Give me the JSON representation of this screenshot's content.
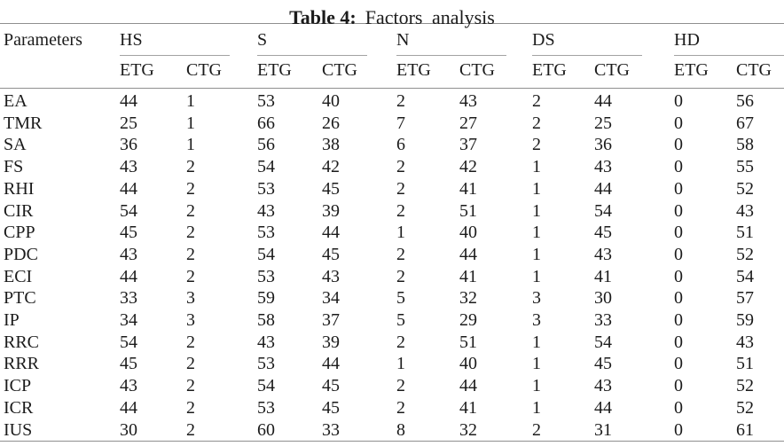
{
  "caption": {
    "label": "Table 4:",
    "text": "Factors analysis"
  },
  "table": {
    "param_header": "Parameters",
    "groups": [
      "HS",
      "S",
      "N",
      "DS",
      "HD"
    ],
    "subheaders": [
      "ETG",
      "CTG"
    ],
    "rows": [
      {
        "param": "EA",
        "values": [
          44,
          1,
          53,
          40,
          2,
          43,
          2,
          44,
          0,
          56
        ]
      },
      {
        "param": "TMR",
        "values": [
          25,
          1,
          66,
          26,
          7,
          27,
          2,
          25,
          0,
          67
        ]
      },
      {
        "param": "SA",
        "values": [
          36,
          1,
          56,
          38,
          6,
          37,
          2,
          36,
          0,
          58
        ]
      },
      {
        "param": "FS",
        "values": [
          43,
          2,
          54,
          42,
          2,
          42,
          1,
          43,
          0,
          55
        ]
      },
      {
        "param": "RHI",
        "values": [
          44,
          2,
          53,
          45,
          2,
          41,
          1,
          44,
          0,
          52
        ]
      },
      {
        "param": "CIR",
        "values": [
          54,
          2,
          43,
          39,
          2,
          51,
          1,
          54,
          0,
          43
        ]
      },
      {
        "param": "CPP",
        "values": [
          45,
          2,
          53,
          44,
          1,
          40,
          1,
          45,
          0,
          51
        ]
      },
      {
        "param": "PDC",
        "values": [
          43,
          2,
          54,
          45,
          2,
          44,
          1,
          43,
          0,
          52
        ]
      },
      {
        "param": "ECI",
        "values": [
          44,
          2,
          53,
          43,
          2,
          41,
          1,
          41,
          0,
          54
        ]
      },
      {
        "param": "PTC",
        "values": [
          33,
          3,
          59,
          34,
          5,
          32,
          3,
          30,
          0,
          57
        ]
      },
      {
        "param": "IP",
        "values": [
          34,
          3,
          58,
          37,
          5,
          29,
          3,
          33,
          0,
          59
        ]
      },
      {
        "param": "RRC",
        "values": [
          54,
          2,
          43,
          39,
          2,
          51,
          1,
          54,
          0,
          43
        ]
      },
      {
        "param": "RRR",
        "values": [
          45,
          2,
          53,
          44,
          1,
          40,
          1,
          45,
          0,
          51
        ]
      },
      {
        "param": "ICP",
        "values": [
          43,
          2,
          54,
          45,
          2,
          44,
          1,
          43,
          0,
          52
        ]
      },
      {
        "param": "ICR",
        "values": [
          44,
          2,
          53,
          45,
          2,
          41,
          1,
          44,
          0,
          52
        ]
      },
      {
        "param": "IUS",
        "values": [
          30,
          2,
          60,
          33,
          8,
          32,
          2,
          31,
          0,
          61
        ]
      }
    ]
  },
  "colors": {
    "text": "#1b1b1b",
    "rule": "#8f8f8f",
    "spanner_rule": "#a3a3a3",
    "background": "#ffffff"
  }
}
